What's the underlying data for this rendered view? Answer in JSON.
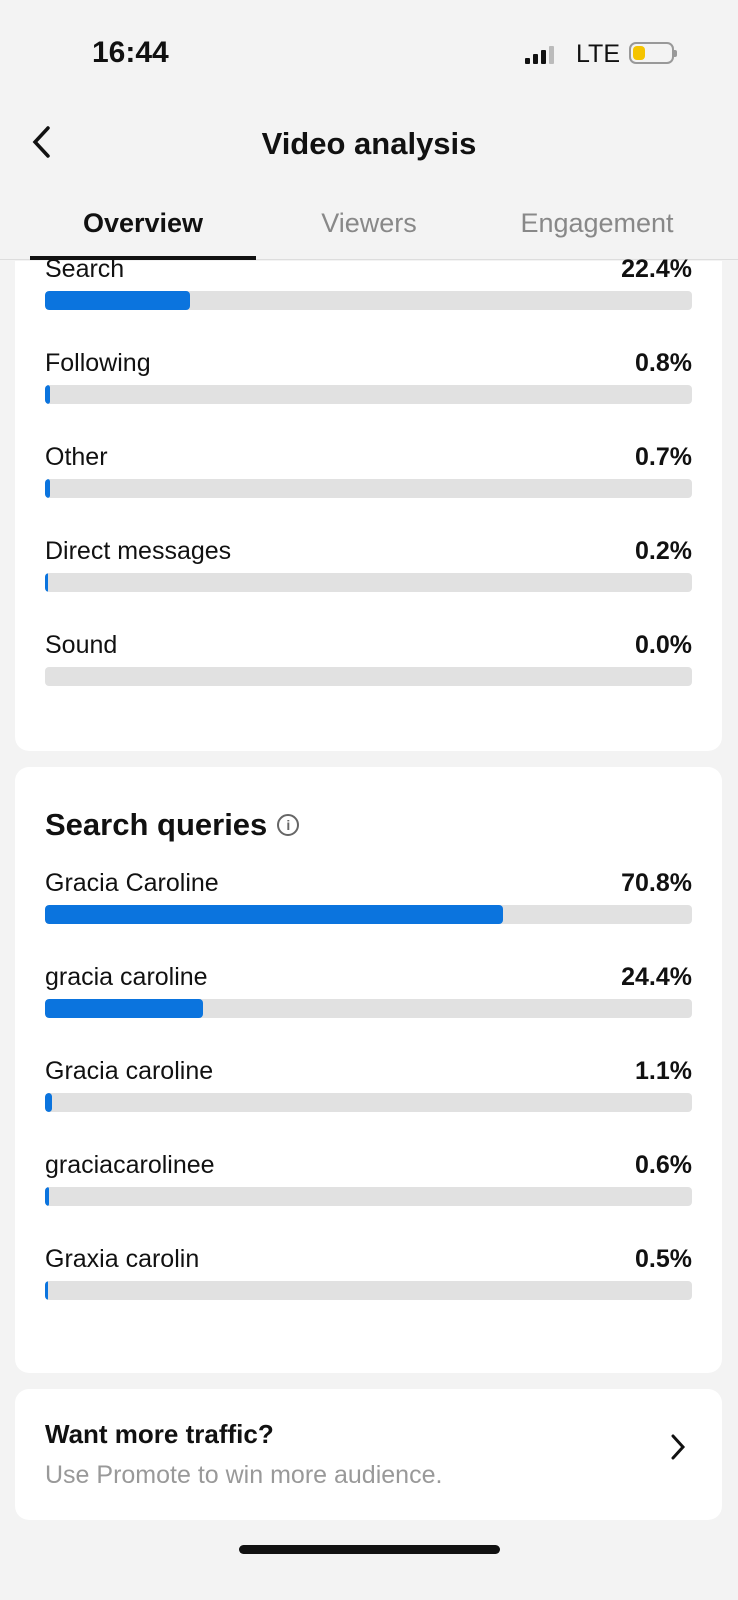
{
  "status_bar": {
    "time": "16:44",
    "network": "LTE",
    "battery_level": 0.25
  },
  "header": {
    "title": "Video analysis"
  },
  "tabs": [
    {
      "label": "Overview",
      "active": true
    },
    {
      "label": "Viewers"
    },
    {
      "label": "Engagement"
    }
  ],
  "traffic_sources": [
    {
      "label": "Search",
      "value": "22.4%",
      "pct": 22.4
    },
    {
      "label": "Following",
      "value": "0.8%",
      "pct": 0.8
    },
    {
      "label": "Other",
      "value": "0.7%",
      "pct": 0.7
    },
    {
      "label": "Direct messages",
      "value": "0.2%",
      "pct": 0.2
    },
    {
      "label": "Sound",
      "value": "0.0%",
      "pct": 0.0
    }
  ],
  "search_queries": {
    "title": "Search queries",
    "items": [
      {
        "label": "Gracia Caroline",
        "value": "70.8%",
        "pct": 70.8
      },
      {
        "label": "gracia caroline",
        "value": "24.4%",
        "pct": 24.4
      },
      {
        "label": "Gracia caroline",
        "value": "1.1%",
        "pct": 1.1
      },
      {
        "label": "graciacarolinee",
        "value": "0.6%",
        "pct": 0.6
      },
      {
        "label": "Graxia carolin",
        "value": "0.5%",
        "pct": 0.5
      }
    ]
  },
  "promo": {
    "title": "Want more traffic?",
    "subtitle": "Use Promote to win more audience."
  },
  "colors": {
    "accent": "#0b74de",
    "track": "#e1e1e1",
    "battery": "#f5c400"
  }
}
